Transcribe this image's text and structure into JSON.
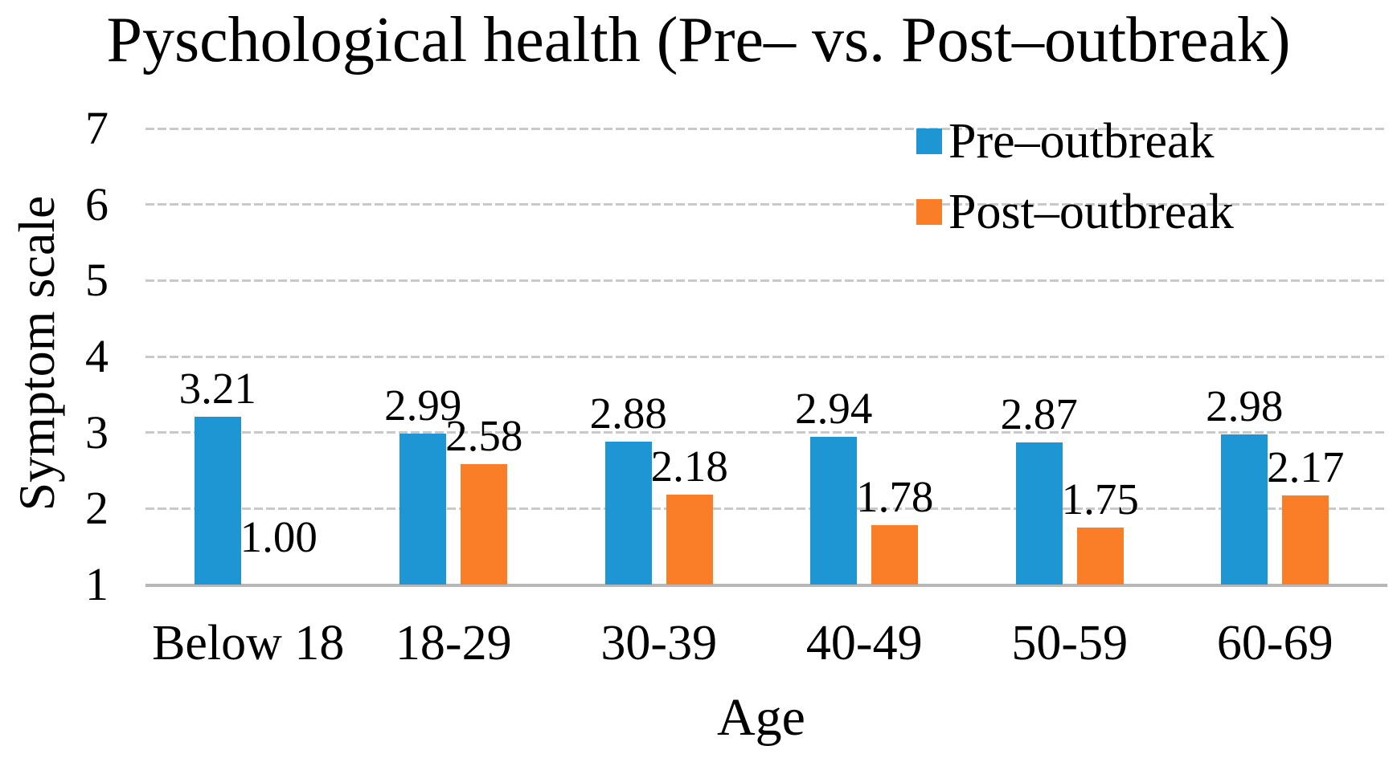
{
  "chart_data": {
    "type": "bar",
    "title": "Pyschological health (Pre– vs. Post–outbreak)",
    "xlabel": "Age",
    "ylabel": "Symptom scale",
    "categories": [
      "Below 18",
      "18-29",
      "30-39",
      "40-49",
      "50-59",
      "60-69"
    ],
    "series": [
      {
        "name": "Pre–outbreak",
        "color": "#1e96d4",
        "values": [
          3.21,
          2.99,
          2.88,
          2.94,
          2.87,
          2.98
        ]
      },
      {
        "name": "Post–outbreak",
        "color": "#fa7d28",
        "values": [
          1.0,
          2.58,
          2.18,
          1.78,
          1.75,
          2.17
        ]
      }
    ],
    "value_decimals": 2,
    "ylim": [
      1,
      7
    ],
    "yticks": [
      7,
      6,
      5,
      4,
      3,
      2,
      1
    ],
    "grid": true,
    "legend_position": "top-right",
    "colors": {
      "gridline": "#c9c9c9",
      "axis_line": "#b7b7b7",
      "text": "#000000"
    }
  }
}
